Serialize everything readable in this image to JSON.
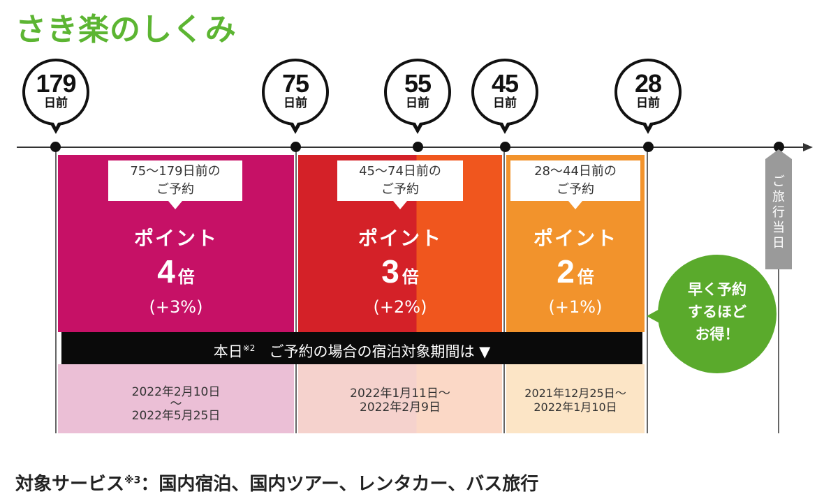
{
  "title": "さき楽のしくみ",
  "markers": [
    {
      "num": "179",
      "unit": "日前"
    },
    {
      "num": "75",
      "unit": "日前"
    },
    {
      "num": "55",
      "unit": "日前"
    },
    {
      "num": "45",
      "unit": "日前"
    },
    {
      "num": "28",
      "unit": "日前"
    }
  ],
  "tiers": [
    {
      "callout_line1": "75〜179日前の",
      "callout_line2": "ご予約",
      "point_label": "ポイント",
      "multiplier": "4",
      "multiplier_unit": "倍",
      "percent": "(+3%)",
      "color": "#c61166"
    },
    {
      "callout_line1": "45〜74日前の",
      "callout_line2": "ご予約",
      "point_label": "ポイント",
      "multiplier": "3",
      "multiplier_unit": "倍",
      "percent": "(+2%)",
      "color": "#d42128"
    },
    {
      "callout_line1": "28〜44日前の",
      "callout_line2": "ご予約",
      "point_label": "ポイント",
      "multiplier": "2",
      "multiplier_unit": "倍",
      "percent": "(+1%)",
      "color": "#f2932c"
    }
  ],
  "bar": {
    "prefix": "本日",
    "note": "※2",
    "text": "ご予約の場合の宿泊対象期間は ▼"
  },
  "periods": [
    {
      "line1": "2022年2月10日",
      "line2": "〜",
      "line3": "2022年5月25日"
    },
    {
      "line1": "2022年1月11日〜",
      "line2": "2022年2月9日"
    },
    {
      "line1": "2021年12月25日〜",
      "line2": "2022年1月10日"
    }
  ],
  "today_tag": [
    "ご",
    "旅",
    "行",
    "当",
    "日"
  ],
  "bubble": {
    "line1": "早く予約",
    "line2": "するほど",
    "line3": "お得！"
  },
  "footer": {
    "prefix": "対象サービス",
    "note": "※3",
    "text": "：国内宿泊、国内ツアー、レンタカー、バス旅行"
  },
  "colors": {
    "brand_green": "#5cb532",
    "tier1": "#c61166",
    "tier2": "#d42128",
    "tier2_accent": "#f0561e",
    "tier3": "#f2932c"
  }
}
